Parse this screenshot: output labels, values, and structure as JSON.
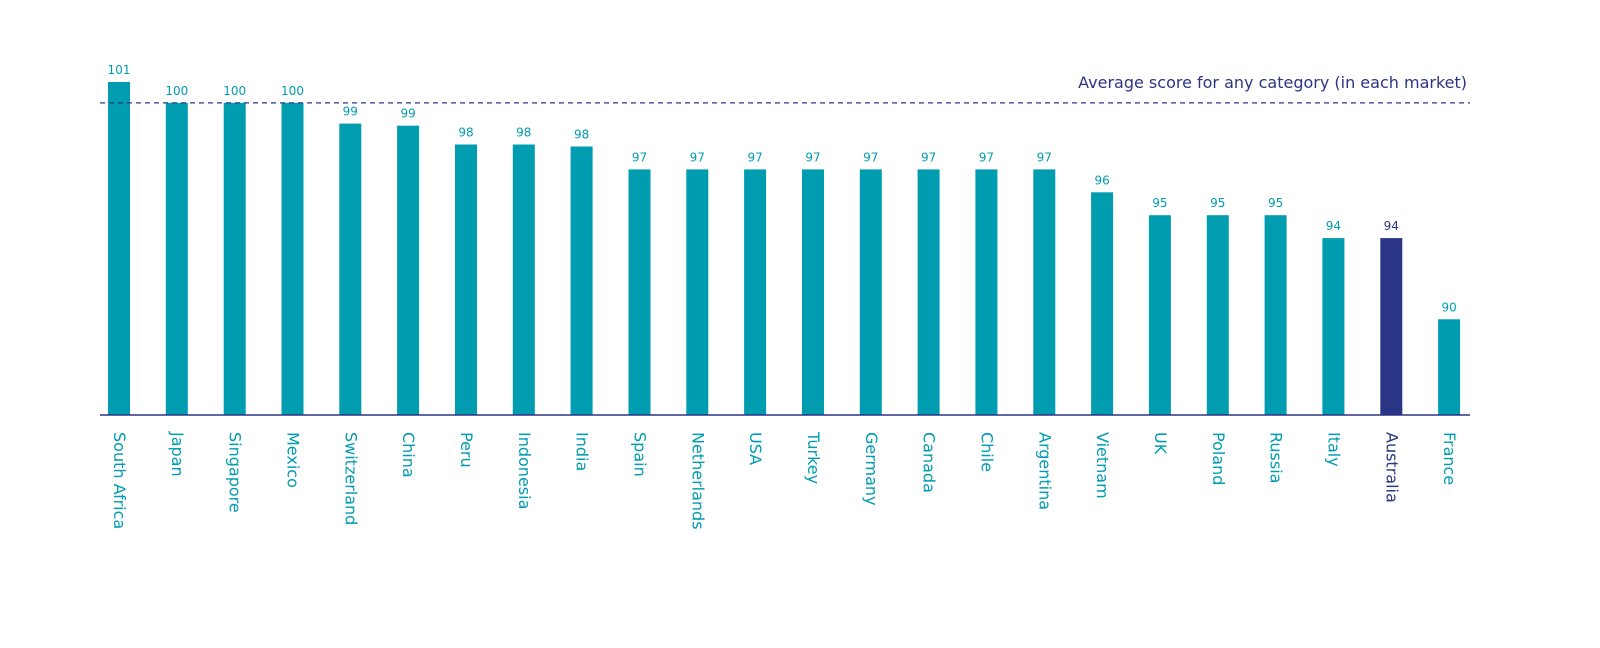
{
  "chart_data": {
    "type": "bar",
    "categories": [
      "South Africa",
      "Japan",
      "Singapore",
      "Mexico",
      "Switzerland",
      "China",
      "Peru",
      "Indonesia",
      "India",
      "Spain",
      "Netherlands",
      "USA",
      "Turkey",
      "Germany",
      "Canada",
      "Chile",
      "Argentina",
      "Vietnam",
      "UK",
      "Poland",
      "Russia",
      "Italy",
      "Australia",
      "France"
    ],
    "values": [
      101.0,
      100.0,
      100.0,
      100.0,
      99.0,
      98.9,
      98.0,
      98.0,
      97.9,
      96.8,
      96.8,
      96.8,
      96.8,
      96.8,
      96.8,
      96.8,
      96.8,
      95.7,
      94.6,
      94.6,
      94.6,
      93.5,
      93.5,
      89.6
    ],
    "data_labels": [
      "101",
      "100",
      "100",
      "100",
      "99",
      "99",
      "98",
      "98",
      "98",
      "97",
      "97",
      "97",
      "97",
      "97",
      "97",
      "97",
      "97",
      "96",
      "95",
      "95",
      "95",
      "94",
      "94",
      "90"
    ],
    "highlight": "Australia",
    "reference_line": {
      "value": 100,
      "label": "Average score for any category (in each market)"
    },
    "ylim": [
      85,
      103.5
    ]
  },
  "colors": {
    "bar": "#009cb0",
    "highlight": "#2b3585",
    "axis": "#2b3585",
    "reference": "#2b3585"
  }
}
